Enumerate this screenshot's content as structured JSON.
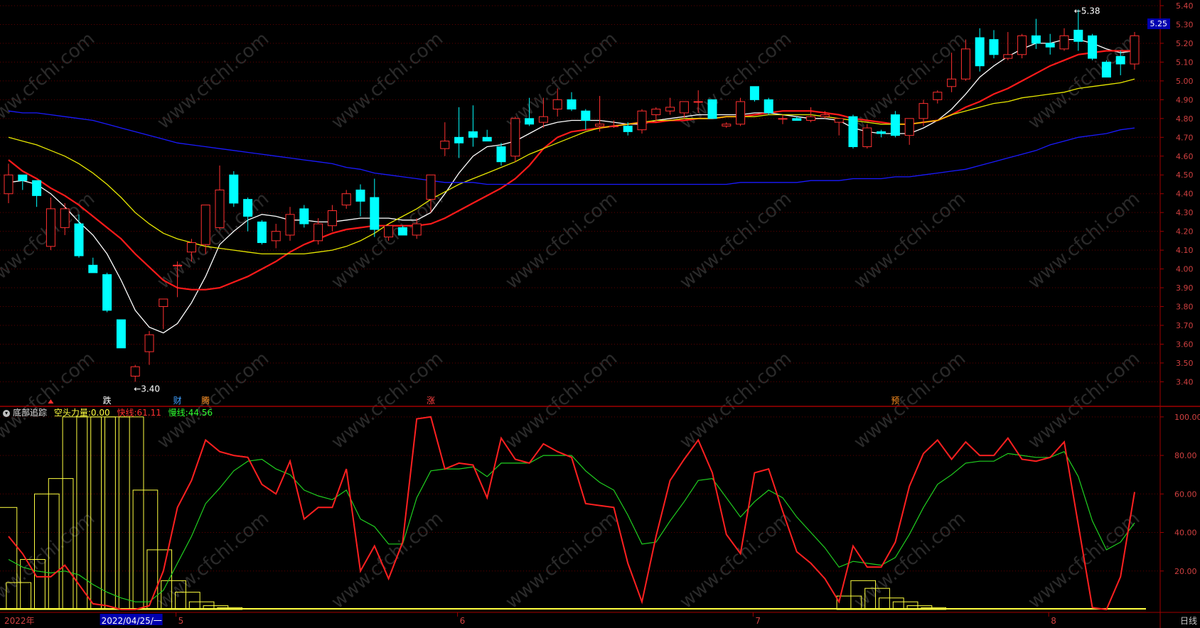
{
  "header": {
    "title": "底部追踪",
    "items": [
      {
        "label": "空头力量:",
        "value": "0.00",
        "color": "#ffff40"
      },
      {
        "label": "快线:",
        "value": "61.11",
        "color": "#ff3030"
      },
      {
        "label": "慢线:",
        "value": "44.56",
        "color": "#30ff30"
      }
    ]
  },
  "price_tag": "5.25",
  "period_label": "日线",
  "date_labels": [
    "2022年",
    "2022/04/25/一",
    "5",
    "6",
    "7",
    "8"
  ],
  "signal_labels": [
    "跌",
    "财",
    "腾",
    "涨",
    "预"
  ],
  "annotations": [
    "←3.40",
    "←5.38"
  ],
  "watermark": "www.cfchi.com",
  "colors": {
    "up": "#ff3030",
    "down": "#00ffff",
    "ma_fast": "#ffffff",
    "ma_red": "#ff1a1a",
    "ma_yellow": "#e8e800",
    "ma_blue": "#1a1aff",
    "fast_line": "#ff2020",
    "slow_line": "#20d020",
    "bear_bars": "#ffff40",
    "grid": "#600000",
    "axis_text": "#d04040"
  },
  "chart_data": [
    {
      "type": "candlestick",
      "y_ticks": [
        3.4,
        3.5,
        3.6,
        3.7,
        3.8,
        3.9,
        4.0,
        4.1,
        4.2,
        4.3,
        4.4,
        4.5,
        4.6,
        4.7,
        4.8,
        4.9,
        5.0,
        5.1,
        5.2,
        5.3,
        5.4
      ],
      "ylim": [
        3.36,
        5.4
      ],
      "ohlc": [
        [
          4.4,
          4.56,
          4.35,
          4.5
        ],
        [
          4.5,
          4.5,
          4.42,
          4.47
        ],
        [
          4.47,
          4.47,
          4.33,
          4.39
        ],
        [
          4.12,
          4.38,
          4.1,
          4.32
        ],
        [
          4.22,
          4.35,
          4.18,
          4.32
        ],
        [
          4.24,
          4.29,
          4.06,
          4.07
        ],
        [
          4.02,
          4.06,
          3.98,
          3.98
        ],
        [
          3.97,
          3.98,
          3.77,
          3.78
        ],
        [
          3.73,
          3.73,
          3.58,
          3.58
        ],
        [
          3.43,
          3.49,
          3.4,
          3.48
        ],
        [
          3.56,
          3.67,
          3.49,
          3.65
        ],
        [
          3.8,
          3.84,
          3.68,
          3.84
        ],
        [
          4.02,
          4.04,
          3.85,
          4.02
        ],
        [
          4.09,
          4.16,
          4.04,
          4.14
        ],
        [
          4.13,
          4.34,
          4.08,
          4.34
        ],
        [
          4.22,
          4.55,
          4.21,
          4.42
        ],
        [
          4.5,
          4.52,
          4.33,
          4.35
        ],
        [
          4.37,
          4.38,
          4.2,
          4.28
        ],
        [
          4.25,
          4.26,
          4.13,
          4.14
        ],
        [
          4.15,
          4.24,
          4.11,
          4.2
        ],
        [
          4.18,
          4.33,
          4.15,
          4.29
        ],
        [
          4.32,
          4.34,
          4.22,
          4.24
        ],
        [
          4.15,
          4.27,
          4.13,
          4.24
        ],
        [
          4.23,
          4.34,
          4.2,
          4.31
        ],
        [
          4.34,
          4.42,
          4.32,
          4.4
        ],
        [
          4.42,
          4.45,
          4.28,
          4.36
        ],
        [
          4.38,
          4.48,
          4.17,
          4.21
        ],
        [
          4.17,
          4.24,
          4.15,
          4.23
        ],
        [
          4.22,
          4.23,
          4.18,
          4.18
        ],
        [
          4.18,
          4.27,
          4.16,
          4.24
        ],
        [
          4.37,
          4.5,
          4.3,
          4.5
        ],
        [
          4.64,
          4.78,
          4.6,
          4.68
        ],
        [
          4.7,
          4.86,
          4.59,
          4.67
        ],
        [
          4.73,
          4.87,
          4.65,
          4.7
        ],
        [
          4.7,
          4.74,
          4.68,
          4.68
        ],
        [
          4.65,
          4.67,
          4.55,
          4.57
        ],
        [
          4.6,
          4.81,
          4.57,
          4.8
        ],
        [
          4.8,
          4.91,
          4.76,
          4.77
        ],
        [
          4.78,
          4.91,
          4.75,
          4.81
        ],
        [
          4.85,
          4.96,
          4.81,
          4.9
        ],
        [
          4.9,
          4.94,
          4.84,
          4.85
        ],
        [
          4.84,
          4.85,
          4.74,
          4.79
        ],
        [
          4.76,
          4.92,
          4.73,
          4.77
        ],
        [
          4.76,
          4.79,
          4.75,
          4.76
        ],
        [
          4.76,
          4.78,
          4.71,
          4.73
        ],
        [
          4.74,
          4.85,
          4.72,
          4.84
        ],
        [
          4.82,
          4.86,
          4.78,
          4.85
        ],
        [
          4.84,
          4.91,
          4.82,
          4.86
        ],
        [
          4.83,
          4.89,
          4.8,
          4.89
        ],
        [
          4.89,
          4.95,
          4.83,
          4.89
        ],
        [
          4.9,
          4.9,
          4.8,
          4.8
        ],
        [
          4.76,
          4.78,
          4.75,
          4.77
        ],
        [
          4.77,
          4.91,
          4.76,
          4.89
        ],
        [
          4.97,
          4.97,
          4.89,
          4.9
        ],
        [
          4.9,
          4.91,
          4.82,
          4.83
        ],
        [
          4.8,
          4.82,
          4.77,
          4.8
        ],
        [
          4.8,
          4.81,
          4.79,
          4.79
        ],
        [
          4.79,
          4.86,
          4.78,
          4.81
        ],
        [
          4.81,
          4.84,
          4.8,
          4.82
        ],
        [
          4.78,
          4.8,
          4.71,
          4.8
        ],
        [
          4.81,
          4.82,
          4.64,
          4.65
        ],
        [
          4.65,
          4.77,
          4.64,
          4.75
        ],
        [
          4.73,
          4.74,
          4.7,
          4.72
        ],
        [
          4.82,
          4.84,
          4.7,
          4.71
        ],
        [
          4.71,
          4.8,
          4.66,
          4.8
        ],
        [
          4.8,
          4.9,
          4.76,
          4.88
        ],
        [
          4.9,
          4.95,
          4.88,
          4.94
        ],
        [
          4.97,
          5.15,
          4.94,
          5.01
        ],
        [
          5.01,
          5.22,
          5.0,
          5.17
        ],
        [
          5.23,
          5.28,
          5.05,
          5.08
        ],
        [
          5.22,
          5.27,
          5.12,
          5.14
        ],
        [
          5.12,
          5.26,
          5.11,
          5.14
        ],
        [
          5.14,
          5.25,
          5.12,
          5.24
        ],
        [
          5.24,
          5.33,
          5.17,
          5.2
        ],
        [
          5.2,
          5.25,
          5.14,
          5.18
        ],
        [
          5.17,
          5.28,
          5.16,
          5.24
        ],
        [
          5.27,
          5.38,
          5.16,
          5.21
        ],
        [
          5.24,
          5.25,
          5.11,
          5.12
        ],
        [
          5.1,
          5.11,
          5.02,
          5.02
        ],
        [
          5.13,
          5.16,
          5.03,
          5.09
        ],
        [
          5.09,
          5.26,
          5.06,
          5.24
        ]
      ],
      "moving_averages": [
        {
          "color": "#ffffff",
          "values": [
            4.46,
            4.47,
            4.45,
            4.4,
            4.33,
            4.25,
            4.18,
            4.08,
            3.94,
            3.78,
            3.69,
            3.66,
            3.71,
            3.82,
            3.96,
            4.13,
            4.2,
            4.26,
            4.29,
            4.28,
            4.26,
            4.26,
            4.25,
            4.25,
            4.26,
            4.27,
            4.27,
            4.27,
            4.26,
            4.26,
            4.3,
            4.4,
            4.51,
            4.6,
            4.65,
            4.66,
            4.68,
            4.72,
            4.76,
            4.78,
            4.79,
            4.79,
            4.79,
            4.78,
            4.77,
            4.77,
            4.79,
            4.8,
            4.81,
            4.82,
            4.82,
            4.82,
            4.82,
            4.83,
            4.83,
            4.82,
            4.81,
            4.8,
            4.8,
            4.79,
            4.75,
            4.73,
            4.72,
            4.72,
            4.72,
            4.75,
            4.79,
            4.85,
            4.93,
            5.02,
            5.08,
            5.13,
            5.17,
            5.2,
            5.2,
            5.22,
            5.22,
            5.2,
            5.17,
            5.15,
            5.16
          ]
        },
        {
          "color": "#ff1a1a",
          "values": [
            4.58,
            4.52,
            4.48,
            4.43,
            4.39,
            4.34,
            4.28,
            4.22,
            4.16,
            4.08,
            4.01,
            3.94,
            3.9,
            3.89,
            3.89,
            3.9,
            3.93,
            3.96,
            4.0,
            4.04,
            4.09,
            4.13,
            4.16,
            4.19,
            4.21,
            4.22,
            4.23,
            4.23,
            4.23,
            4.23,
            4.24,
            4.27,
            4.31,
            4.35,
            4.39,
            4.43,
            4.48,
            4.55,
            4.64,
            4.7,
            4.73,
            4.74,
            4.75,
            4.76,
            4.77,
            4.78,
            4.78,
            4.79,
            4.79,
            4.8,
            4.8,
            4.81,
            4.81,
            4.82,
            4.83,
            4.84,
            4.84,
            4.84,
            4.83,
            4.82,
            4.8,
            4.79,
            4.78,
            4.77,
            4.77,
            4.78,
            4.79,
            4.82,
            4.86,
            4.89,
            4.93,
            4.96,
            5.0,
            5.04,
            5.08,
            5.11,
            5.14,
            5.15,
            5.16,
            5.16,
            5.16
          ]
        },
        {
          "color": "#e8e800",
          "values": [
            4.7,
            4.68,
            4.66,
            4.63,
            4.6,
            4.56,
            4.51,
            4.45,
            4.38,
            4.3,
            4.24,
            4.19,
            4.16,
            4.14,
            4.12,
            4.11,
            4.1,
            4.09,
            4.08,
            4.08,
            4.08,
            4.08,
            4.09,
            4.1,
            4.12,
            4.15,
            4.19,
            4.24,
            4.28,
            4.32,
            4.37,
            4.41,
            4.45,
            4.48,
            4.51,
            4.54,
            4.57,
            4.61,
            4.64,
            4.67,
            4.7,
            4.73,
            4.75,
            4.76,
            4.77,
            4.78,
            4.79,
            4.79,
            4.8,
            4.8,
            4.8,
            4.81,
            4.81,
            4.81,
            4.82,
            4.82,
            4.82,
            4.82,
            4.81,
            4.8,
            4.79,
            4.78,
            4.77,
            4.77,
            4.77,
            4.78,
            4.79,
            4.82,
            4.84,
            4.86,
            4.88,
            4.89,
            4.91,
            4.92,
            4.93,
            4.94,
            4.96,
            4.97,
            4.98,
            4.99,
            5.01
          ]
        },
        {
          "color": "#1a1aff",
          "values": [
            4.84,
            4.83,
            4.83,
            4.82,
            4.81,
            4.8,
            4.79,
            4.77,
            4.75,
            4.73,
            4.71,
            4.69,
            4.67,
            4.66,
            4.65,
            4.64,
            4.63,
            4.62,
            4.61,
            4.6,
            4.59,
            4.58,
            4.57,
            4.56,
            4.54,
            4.53,
            4.51,
            4.5,
            4.49,
            4.48,
            4.47,
            4.46,
            4.46,
            4.46,
            4.45,
            4.45,
            4.45,
            4.45,
            4.45,
            4.45,
            4.45,
            4.45,
            4.45,
            4.45,
            4.45,
            4.45,
            4.45,
            4.45,
            4.45,
            4.45,
            4.45,
            4.45,
            4.46,
            4.46,
            4.46,
            4.46,
            4.46,
            4.47,
            4.47,
            4.47,
            4.48,
            4.48,
            4.48,
            4.49,
            4.49,
            4.5,
            4.51,
            4.52,
            4.53,
            4.55,
            4.57,
            4.59,
            4.61,
            4.63,
            4.66,
            4.68,
            4.7,
            4.71,
            4.72,
            4.74,
            4.75
          ]
        }
      ]
    },
    {
      "type": "indicator",
      "title": "底部追踪",
      "y_ticks": [
        20,
        40,
        60,
        80,
        100
      ],
      "ylim": [
        0,
        104
      ],
      "series": [
        {
          "name": "快线",
          "color": "#ff2020",
          "values": [
            38,
            29,
            17,
            17,
            23,
            13,
            3,
            2,
            0,
            0,
            2,
            20,
            53,
            67,
            88,
            82,
            80,
            79,
            65,
            60,
            77,
            47,
            53,
            53,
            73,
            20,
            33,
            16,
            35,
            99,
            100,
            73,
            76,
            75,
            58,
            89,
            78,
            76,
            86,
            82,
            79,
            55,
            54,
            53,
            24,
            4,
            38,
            67,
            78,
            88,
            71,
            39,
            29,
            71,
            73,
            51,
            30,
            24,
            16,
            4,
            33,
            22,
            22,
            35,
            64,
            81,
            88,
            78,
            87,
            80,
            80,
            89,
            78,
            77,
            79,
            87,
            44,
            1,
            0,
            17,
            61
          ]
        },
        {
          "name": "慢线",
          "color": "#20d020",
          "values": [
            26,
            22,
            20,
            19,
            20,
            18,
            13,
            9,
            6,
            4,
            4,
            10,
            24,
            38,
            55,
            63,
            72,
            77,
            78,
            73,
            70,
            62,
            59,
            57,
            62,
            47,
            43,
            34,
            34,
            58,
            72,
            73,
            73,
            74,
            69,
            76,
            76,
            76,
            80,
            80,
            80,
            72,
            66,
            62,
            49,
            34,
            35,
            46,
            56,
            67,
            68,
            58,
            48,
            56,
            62,
            58,
            48,
            40,
            32,
            22,
            25,
            24,
            23,
            27,
            39,
            53,
            65,
            70,
            76,
            77,
            77,
            81,
            80,
            79,
            79,
            82,
            69,
            46,
            31,
            35,
            45
          ]
        },
        {
          "name": "空头力量",
          "color": "#ffff40",
          "values": [
            53,
            14,
            26,
            60,
            68,
            100,
            100,
            100,
            100,
            100,
            62,
            31,
            15,
            9,
            4,
            2,
            1,
            0,
            0,
            0,
            0,
            0,
            0,
            0,
            0,
            0,
            0,
            0,
            0,
            0,
            0,
            0,
            0,
            0,
            0,
            0,
            0,
            0,
            0,
            0,
            0,
            0,
            0,
            0,
            0,
            0,
            0,
            0,
            0,
            0,
            0,
            0,
            0,
            0,
            0,
            0,
            0,
            0,
            0,
            0,
            7,
            15,
            11,
            6,
            4,
            2,
            1,
            0,
            0,
            0,
            0,
            0,
            0,
            0,
            0,
            0,
            0,
            0,
            0,
            0,
            0
          ]
        }
      ]
    }
  ]
}
